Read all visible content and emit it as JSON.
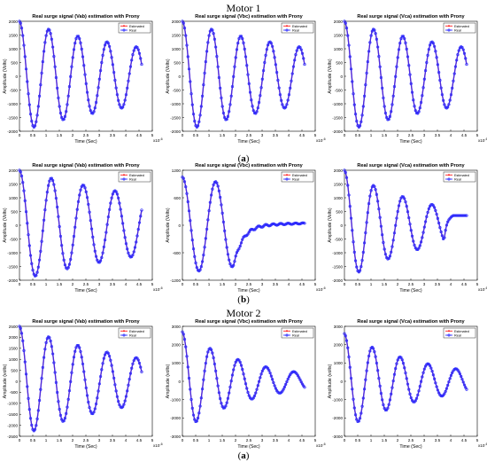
{
  "figure": {
    "section_top": "Motor 1",
    "section_bottom": "Motor 2",
    "row_labels": [
      {
        "open": "(",
        "letter": "a",
        "close": ")"
      },
      {
        "open": "(",
        "letter": "b",
        "close": ")"
      },
      {
        "open": "(",
        "letter": "a",
        "close": ")"
      }
    ],
    "colors": {
      "estimated": "#ff2020",
      "real": "#2b2bff",
      "axes": "#000000"
    }
  },
  "chart_data": [
    {
      "id": "m1a-vab",
      "type": "line",
      "title": "Real surge signal (Vab) estimation with Prony",
      "xlabel": "Time (Sec)",
      "ylabel": "Amplitude (Volts)",
      "x_exponent": "-6",
      "xlim": [
        0,
        5
      ],
      "ylim": [
        -2000,
        2000
      ],
      "xticks": [
        "0",
        "0.5",
        "1",
        "1.5",
        "2",
        "2.5",
        "3",
        "3.5",
        "4",
        "4.5",
        "5"
      ],
      "yticks": [
        "-2000",
        "-1500",
        "-1000",
        "-500",
        "0",
        "500",
        "1000",
        "1500",
        "2000"
      ],
      "legend": {
        "placement": "top-right",
        "entries": [
          "Estimated",
          "Real"
        ]
      },
      "signal": {
        "kind": "damped_sine",
        "start_value": 2000,
        "minimum_value": -1850,
        "period": 1.1,
        "end_time": 4.6
      },
      "series": [
        {
          "name": "Estimated"
        },
        {
          "name": "Real"
        }
      ]
    },
    {
      "id": "m1a-vbc",
      "type": "line",
      "title": "Real surge signal (Vbc) estimation with Prony",
      "xlabel": "Time (Sec)",
      "ylabel": "Amplitude (Volts)",
      "x_exponent": "-6",
      "xlim": [
        0,
        5
      ],
      "ylim": [
        -2000,
        2000
      ],
      "xticks": [
        "0",
        "0.5",
        "1",
        "1.5",
        "2",
        "2.5",
        "3",
        "3.5",
        "4",
        "4.5",
        "5"
      ],
      "yticks": [
        "-2000",
        "-1500",
        "-1000",
        "-500",
        "0",
        "500",
        "1000",
        "1500",
        "2000"
      ],
      "legend": {
        "placement": "top-right",
        "entries": [
          "Estimated",
          "Real"
        ]
      },
      "signal": {
        "kind": "damped_sine",
        "start_value": 2000,
        "minimum_value": -1850,
        "period": 1.1,
        "end_time": 4.6
      },
      "series": [
        {
          "name": "Estimated"
        },
        {
          "name": "Real"
        }
      ]
    },
    {
      "id": "m1a-vca",
      "type": "line",
      "title": "Real surge signal (Vca) estimation with Prony",
      "xlabel": "Time (Sec)",
      "ylabel": "Amplitude (Volts)",
      "x_exponent": "-6",
      "xlim": [
        0,
        5
      ],
      "ylim": [
        -2000,
        2000
      ],
      "xticks": [
        "0",
        "0.5",
        "1",
        "1.5",
        "2",
        "2.5",
        "3",
        "3.5",
        "4",
        "4.5",
        "5"
      ],
      "yticks": [
        "-2000",
        "-1500",
        "-1000",
        "-500",
        "0",
        "500",
        "1000",
        "1500",
        "2000"
      ],
      "legend": {
        "placement": "top-right",
        "entries": [
          "Estimated",
          "Real"
        ]
      },
      "signal": {
        "kind": "damped_sine",
        "start_value": 2000,
        "minimum_value": -1850,
        "period": 1.1,
        "end_time": 4.6
      },
      "series": [
        {
          "name": "Estimated"
        },
        {
          "name": "Real"
        }
      ]
    },
    {
      "id": "m1b-vab",
      "type": "line",
      "title": "Real surge signal (Vab) estimation with Prony",
      "xlabel": "Time (Sec)",
      "ylabel": "Amplitude (Volts)",
      "x_exponent": "-6",
      "xlim": [
        0,
        5
      ],
      "ylim": [
        -2000,
        2000
      ],
      "xticks": [
        "0",
        "0.5",
        "1",
        "1.5",
        "2",
        "2.5",
        "3",
        "3.5",
        "4",
        "4.5",
        "5"
      ],
      "yticks": [
        "-2000",
        "-1500",
        "-1000",
        "-500",
        "0",
        "500",
        "1000",
        "1500",
        "2000"
      ],
      "legend": {
        "placement": "top-right",
        "entries": [
          "Estimated",
          "Real"
        ]
      },
      "signal": {
        "kind": "damped_sine",
        "start_value": 2000,
        "minimum_value": -1850,
        "period": 1.2,
        "end_time": 4.6,
        "end_value": -1000
      },
      "series": [
        {
          "name": "Estimated"
        },
        {
          "name": "Real"
        }
      ]
    },
    {
      "id": "m1b-vbc",
      "type": "line",
      "title": "Real surge signal (Vbc) estimation with Prony",
      "xlabel": "Time (Sec)",
      "ylabel": "Amplitude (Volts)",
      "x_exponent": "-6",
      "xlim": [
        0,
        5
      ],
      "ylim": [
        -1200,
        1200
      ],
      "xticks": [
        "0",
        "0.5",
        "1",
        "1.5",
        "2",
        "2.5",
        "3",
        "3.5",
        "4",
        "4.5",
        "5"
      ],
      "yticks": [
        "-1200",
        "-600",
        "0",
        "600",
        "1200"
      ],
      "legend": {
        "placement": "top-right",
        "entries": [
          "Estimated",
          "Real"
        ]
      },
      "signal": {
        "kind": "damped_then_settling",
        "start_value": 1050,
        "minimum_value": -1000,
        "second_peak": 550,
        "settle_value": 40,
        "end_time": 4.6
      },
      "series": [
        {
          "name": "Estimated"
        },
        {
          "name": "Real"
        }
      ]
    },
    {
      "id": "m1b-vca",
      "type": "line",
      "title": "Real surge signal (Vca) estimation with Prony",
      "xlabel": "Time (Sec)",
      "ylabel": "Amplitude (Volts)",
      "x_exponent": "-6",
      "xlim": [
        0,
        5
      ],
      "ylim": [
        -2000,
        2000
      ],
      "xticks": [
        "0",
        "0.5",
        "1",
        "1.5",
        "2",
        "2.5",
        "3",
        "3.5",
        "4",
        "4.5",
        "5"
      ],
      "yticks": [
        "-2000",
        "-1500",
        "-1000",
        "-500",
        "0",
        "500",
        "1000",
        "1500",
        "2000"
      ],
      "legend": {
        "placement": "top-right",
        "entries": [
          "Estimated",
          "Real"
        ]
      },
      "signal": {
        "kind": "damped_then_flat",
        "start_value": 2000,
        "minimum_value": -1700,
        "period": 1.1,
        "flat_value": 400,
        "end_time": 4.6
      },
      "series": [
        {
          "name": "Estimated"
        },
        {
          "name": "Real"
        }
      ]
    },
    {
      "id": "m2a-vab",
      "type": "line",
      "title": "Real surge signal (Vab) estimation with Prony",
      "xlabel": "Time (Sec)",
      "ylabel": "Amplitude (volts)",
      "x_exponent": "-6",
      "xlim": [
        0,
        5
      ],
      "ylim": [
        -2500,
        2500
      ],
      "xticks": [
        "0",
        "0.5",
        "1",
        "1.5",
        "2",
        "2.5",
        "3",
        "3.5",
        "4",
        "4.5",
        "5"
      ],
      "yticks": [
        "-2500",
        "-2000",
        "-1500",
        "-1000",
        "-500",
        "0",
        "500",
        "1000",
        "1500",
        "2000",
        "2500"
      ],
      "legend": {
        "placement": "top-right",
        "entries": [
          "Estimated",
          "Real"
        ]
      },
      "signal": {
        "kind": "damped_sine",
        "start_value": 2500,
        "minimum_value": -2250,
        "period": 1.1,
        "end_time": 4.6
      },
      "series": [
        {
          "name": "Estimated"
        },
        {
          "name": "Real"
        }
      ]
    },
    {
      "id": "m2a-vbc",
      "type": "line",
      "title": "Real surge signal (Vbc) estimation with Prony",
      "xlabel": "Time (Sec)",
      "ylabel": "Amplitude (volts)",
      "x_exponent": "-6",
      "xlim": [
        0,
        5
      ],
      "ylim": [
        -3000,
        3000
      ],
      "xticks": [
        "0",
        "0.5",
        "1",
        "1.5",
        "2",
        "2.5",
        "3",
        "3.5",
        "4",
        "4.5",
        "5"
      ],
      "yticks": [
        "-3000",
        "-2000",
        "-1000",
        "0",
        "1000",
        "2000",
        "3000"
      ],
      "legend": {
        "placement": "top-right",
        "entries": [
          "Estimated",
          "Real"
        ]
      },
      "signal": {
        "kind": "damped_sine",
        "start_value": 2700,
        "minimum_value": -2200,
        "period": 1.05,
        "end_time": 4.6
      },
      "series": [
        {
          "name": "Estimated"
        },
        {
          "name": "Real"
        }
      ]
    },
    {
      "id": "m2a-vca",
      "type": "line",
      "title": "Real surge signal (Vca) estimation with Prony",
      "xlabel": "Time (Sec)",
      "ylabel": "Amplitude (volts)",
      "x_exponent": "-6",
      "xlim": [
        0,
        5
      ],
      "ylim": [
        -3000,
        3000
      ],
      "xticks": [
        "0",
        "0.5",
        "1",
        "1.5",
        "2",
        "2.5",
        "3",
        "3.5",
        "4",
        "4.5",
        "5"
      ],
      "yticks": [
        "-3000",
        "-2000",
        "-1000",
        "0",
        "1000",
        "2000",
        "3000"
      ],
      "legend": {
        "placement": "top-right",
        "entries": [
          "Estimated",
          "Real"
        ]
      },
      "signal": {
        "kind": "damped_sine",
        "start_value": 2600,
        "minimum_value": -2200,
        "period": 1.05,
        "end_time": 4.6
      },
      "series": [
        {
          "name": "Estimated"
        },
        {
          "name": "Real"
        }
      ]
    }
  ]
}
